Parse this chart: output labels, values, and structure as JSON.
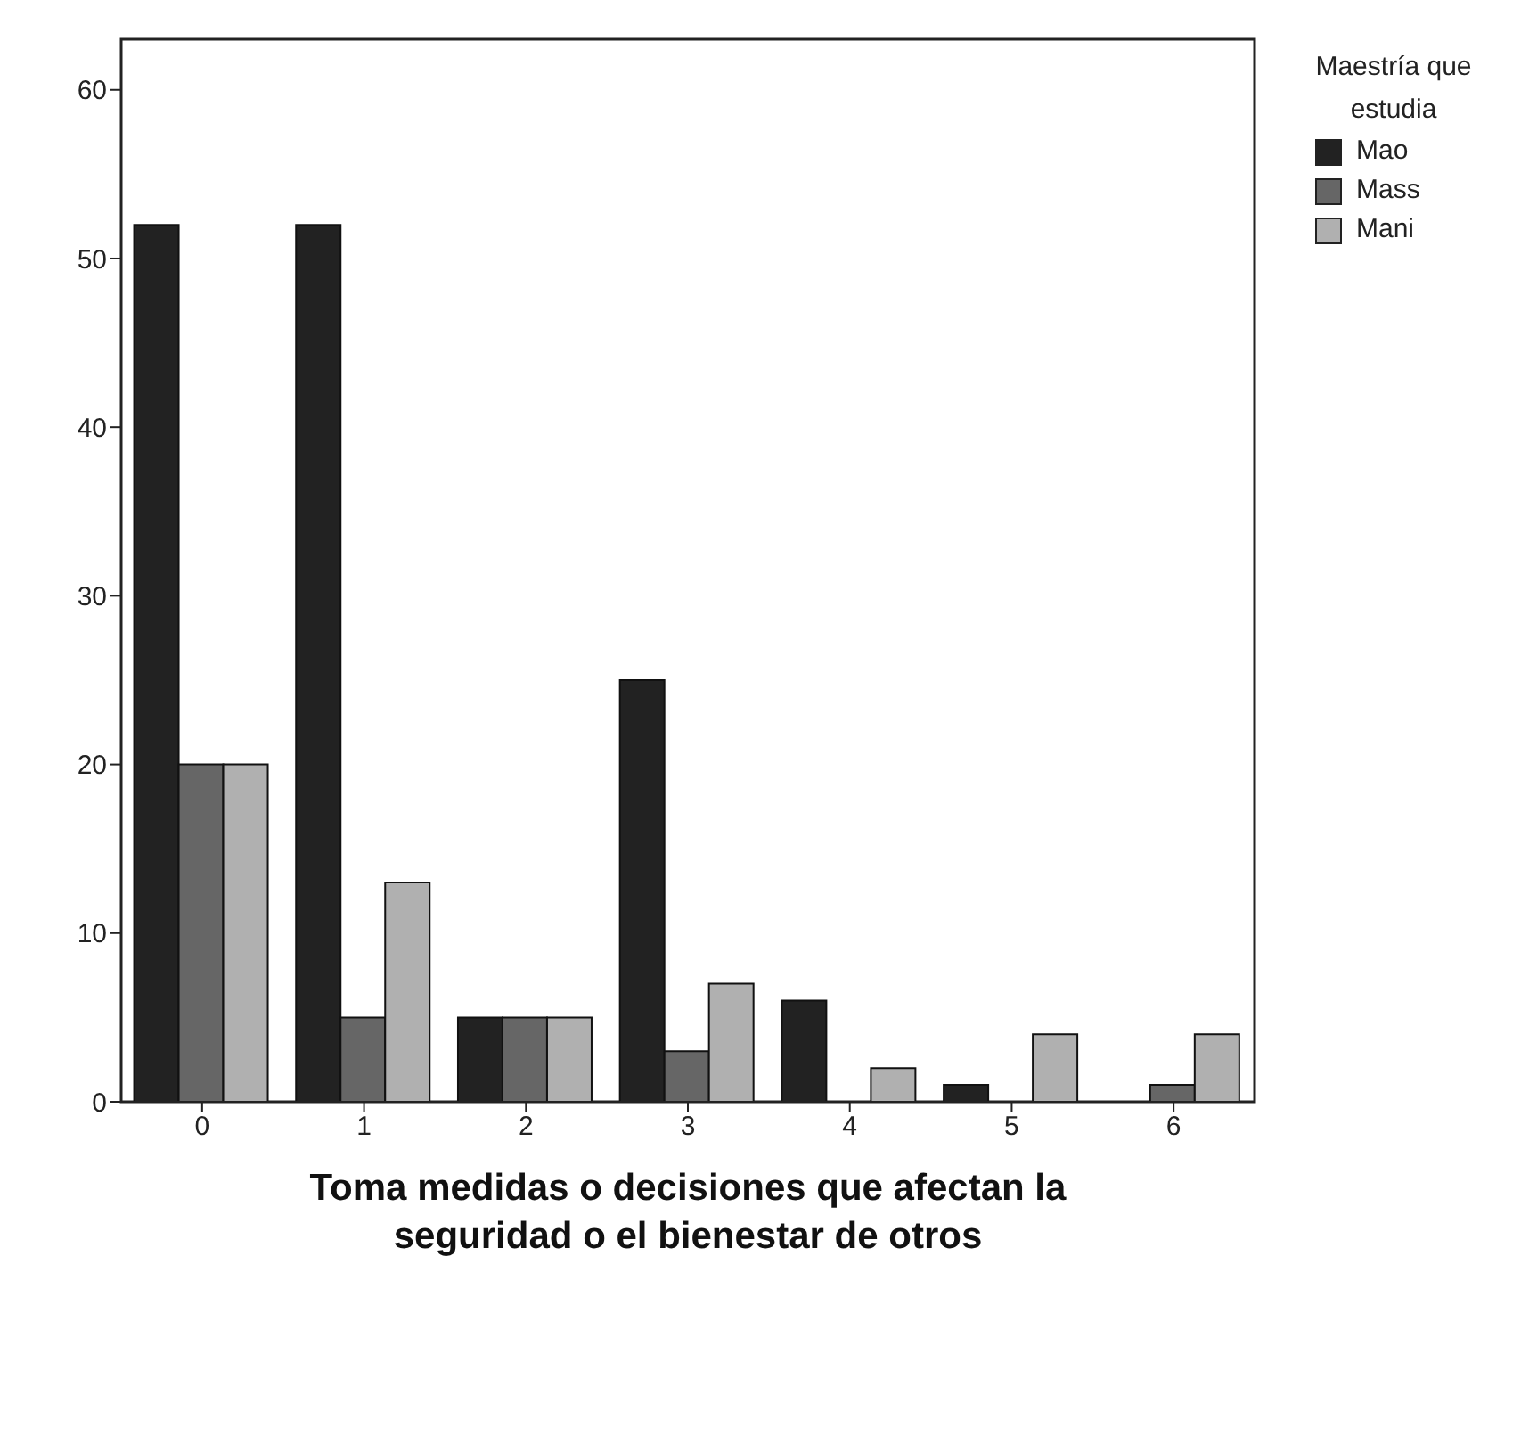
{
  "chart_data": {
    "type": "bar",
    "xlabel": "Toma medidas o decisiones que afectan la seguridad o el bienestar de otros",
    "legend_title": "Maestría que estudia",
    "categories": [
      "0",
      "1",
      "2",
      "3",
      "4",
      "5",
      "6"
    ],
    "series": [
      {
        "name": "Mao",
        "color": "#222222",
        "values": [
          52,
          52,
          5,
          25,
          6,
          1,
          0
        ]
      },
      {
        "name": "Mass",
        "color": "#666666",
        "values": [
          20,
          5,
          5,
          3,
          0,
          0,
          1
        ]
      },
      {
        "name": "Mani",
        "color": "#b0b0b0",
        "values": [
          20,
          13,
          5,
          7,
          2,
          4,
          4
        ]
      }
    ],
    "ylim": [
      0,
      63
    ],
    "yticks": [
      0,
      10,
      20,
      30,
      40,
      50,
      60
    ],
    "grid": false,
    "legend": "top right"
  }
}
